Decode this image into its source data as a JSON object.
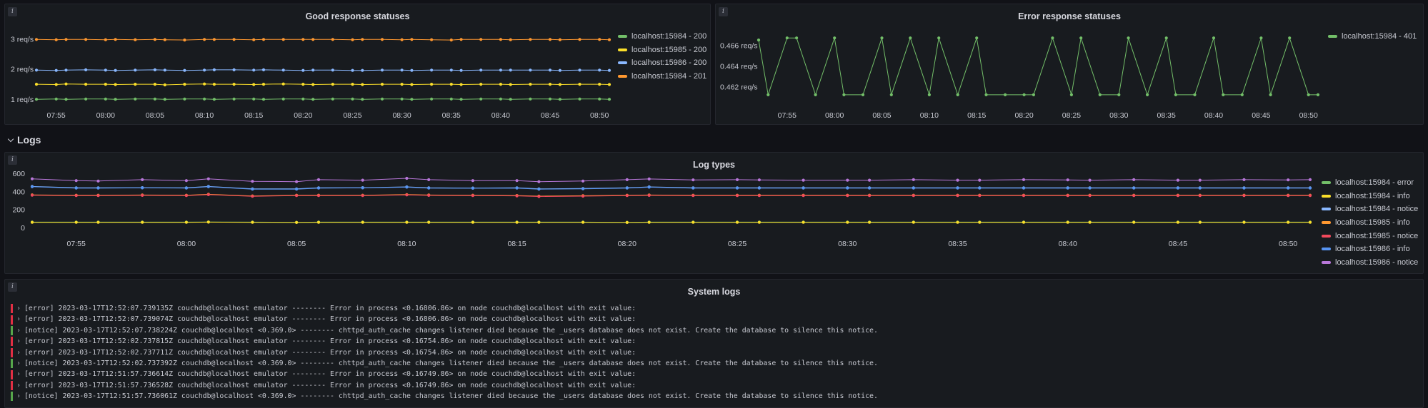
{
  "colors": {
    "green": "#73bf69",
    "yellow": "#fade2a",
    "blue": "#8ab8ff",
    "orange": "#ff9830",
    "red": "#f2495c",
    "blue2": "#5794f2",
    "purple": "#b877d9",
    "error_bar": "#e02f44",
    "notice_bar": "#56a64b"
  },
  "row_logs": {
    "label": "Logs",
    "icon": "chevron-down-icon"
  },
  "panels": {
    "good": {
      "title": "Good response statuses",
      "legend": [
        {
          "label": "localhost:15984 - 200",
          "color": "#73bf69"
        },
        {
          "label": "localhost:15985 - 200",
          "color": "#fade2a"
        },
        {
          "label": "localhost:15986 - 200",
          "color": "#8ab8ff"
        },
        {
          "label": "localhost:15984 - 201",
          "color": "#ff9830"
        }
      ]
    },
    "error": {
      "title": "Error response statuses",
      "legend": [
        {
          "label": "localhost:15984 - 401",
          "color": "#73bf69"
        }
      ]
    },
    "logtypes": {
      "title": "Log types",
      "legend": [
        {
          "label": "localhost:15984 - error",
          "color": "#73bf69"
        },
        {
          "label": "localhost:15984 - info",
          "color": "#fade2a"
        },
        {
          "label": "localhost:15984 - notice",
          "color": "#8ab8ff"
        },
        {
          "label": "localhost:15985 - info",
          "color": "#ff9830"
        },
        {
          "label": "localhost:15985 - notice",
          "color": "#f2495c"
        },
        {
          "label": "localhost:15986 - info",
          "color": "#5794f2"
        },
        {
          "label": "localhost:15986 - notice",
          "color": "#b877d9"
        }
      ]
    },
    "syslogs": {
      "title": "System logs",
      "lines": [
        {
          "level": "error",
          "text": "[error] 2023-03-17T12:52:07.739135Z couchdb@localhost emulator -------- Error in process <0.16806.86> on node couchdb@localhost with exit value:"
        },
        {
          "level": "error",
          "text": "[error] 2023-03-17T12:52:07.739074Z couchdb@localhost emulator -------- Error in process <0.16806.86> on node couchdb@localhost with exit value:"
        },
        {
          "level": "notice",
          "text": "[notice] 2023-03-17T12:52:07.738224Z couchdb@localhost <0.369.0> -------- chttpd_auth_cache changes listener died because the _users database does not exist. Create the database to silence this notice."
        },
        {
          "level": "error",
          "text": "[error] 2023-03-17T12:52:02.737815Z couchdb@localhost emulator -------- Error in process <0.16754.86> on node couchdb@localhost with exit value:"
        },
        {
          "level": "error",
          "text": "[error] 2023-03-17T12:52:02.737711Z couchdb@localhost emulator -------- Error in process <0.16754.86> on node couchdb@localhost with exit value:"
        },
        {
          "level": "notice",
          "text": "[notice] 2023-03-17T12:52:02.737392Z couchdb@localhost <0.369.0> -------- chttpd_auth_cache changes listener died because the _users database does not exist. Create the database to silence this notice."
        },
        {
          "level": "error",
          "text": "[error] 2023-03-17T12:51:57.736614Z couchdb@localhost emulator -------- Error in process <0.16749.86> on node couchdb@localhost with exit value:"
        },
        {
          "level": "error",
          "text": "[error] 2023-03-17T12:51:57.736528Z couchdb@localhost emulator -------- Error in process <0.16749.86> on node couchdb@localhost with exit value:"
        },
        {
          "level": "notice",
          "text": "[notice] 2023-03-17T12:51:57.736061Z couchdb@localhost <0.369.0> -------- chttpd_auth_cache changes listener died because the _users database does not exist. Create the database to silence this notice."
        }
      ]
    }
  },
  "chart_data": [
    {
      "type": "line",
      "title": "Good response statuses",
      "x": [
        "07:53",
        "07:55",
        "07:56",
        "07:58",
        "08:00",
        "08:01",
        "08:03",
        "08:05",
        "08:06",
        "08:08",
        "08:10",
        "08:11",
        "08:13",
        "08:15",
        "08:16",
        "08:18",
        "08:20",
        "08:21",
        "08:23",
        "08:25",
        "08:26",
        "08:28",
        "08:30",
        "08:31",
        "08:33",
        "08:35",
        "08:36",
        "08:38",
        "08:40",
        "08:41",
        "08:43",
        "08:45",
        "08:46",
        "08:48",
        "08:50",
        "08:51"
      ],
      "x_ticks": [
        "07:55",
        "08:00",
        "08:05",
        "08:10",
        "08:15",
        "08:20",
        "08:25",
        "08:30",
        "08:35",
        "08:40",
        "08:45",
        "08:50"
      ],
      "y_ticks": [
        "1 req/s",
        "2 req/s",
        "3 req/s"
      ],
      "ylim": [
        0.9,
        3.2
      ],
      "series": [
        {
          "name": "localhost:15984 - 200",
          "color": "#73bf69",
          "values": [
            0.99,
            1.0,
            0.99,
            1.0,
            1.0,
            0.99,
            1.0,
            1.0,
            0.99,
            1.0,
            1.0,
            0.99,
            1.0,
            1.0,
            0.99,
            1.0,
            1.0,
            0.99,
            1.0,
            1.0,
            0.99,
            1.0,
            1.0,
            0.99,
            1.0,
            1.0,
            0.99,
            1.0,
            1.0,
            0.99,
            1.0,
            1.0,
            0.99,
            1.0,
            1.0,
            0.99
          ]
        },
        {
          "name": "localhost:15985 - 200",
          "color": "#fade2a",
          "values": [
            1.49,
            1.48,
            1.5,
            1.49,
            1.49,
            1.48,
            1.49,
            1.49,
            1.47,
            1.49,
            1.5,
            1.49,
            1.49,
            1.48,
            1.49,
            1.5,
            1.49,
            1.48,
            1.49,
            1.49,
            1.48,
            1.49,
            1.49,
            1.48,
            1.49,
            1.49,
            1.48,
            1.49,
            1.49,
            1.48,
            1.49,
            1.49,
            1.48,
            1.49,
            1.49,
            1.48
          ]
        },
        {
          "name": "localhost:15986 - 200",
          "color": "#8ab8ff",
          "values": [
            1.96,
            1.95,
            1.96,
            1.97,
            1.96,
            1.95,
            1.96,
            1.97,
            1.96,
            1.95,
            1.96,
            1.97,
            1.97,
            1.96,
            1.97,
            1.96,
            1.95,
            1.96,
            1.96,
            1.95,
            1.95,
            1.96,
            1.96,
            1.95,
            1.96,
            1.96,
            1.95,
            1.96,
            1.96,
            1.96,
            1.96,
            1.96,
            1.95,
            1.96,
            1.96,
            1.95
          ]
        },
        {
          "name": "localhost:15984 - 201",
          "color": "#ff9830",
          "values": [
            2.98,
            2.97,
            2.98,
            2.98,
            2.97,
            2.98,
            2.97,
            2.98,
            2.97,
            2.96,
            2.98,
            2.98,
            2.98,
            2.97,
            2.98,
            2.98,
            2.98,
            2.98,
            2.98,
            2.97,
            2.98,
            2.98,
            2.97,
            2.98,
            2.97,
            2.96,
            2.98,
            2.98,
            2.98,
            2.97,
            2.98,
            2.98,
            2.97,
            2.98,
            2.98,
            2.97
          ]
        }
      ]
    },
    {
      "type": "line",
      "title": "Error response statuses",
      "x": [
        "07:52",
        "07:53",
        "07:55",
        "07:56",
        "07:58",
        "08:00",
        "08:01",
        "08:03",
        "08:05",
        "08:06",
        "08:08",
        "08:10",
        "08:11",
        "08:13",
        "08:15",
        "08:16",
        "08:18",
        "08:20",
        "08:21",
        "08:23",
        "08:25",
        "08:26",
        "08:28",
        "08:30",
        "08:31",
        "08:33",
        "08:35",
        "08:36",
        "08:38",
        "08:40",
        "08:41",
        "08:43",
        "08:45",
        "08:46",
        "08:48",
        "08:50",
        "08:51"
      ],
      "x_ticks": [
        "07:55",
        "08:00",
        "08:05",
        "08:10",
        "08:15",
        "08:20",
        "08:25",
        "08:30",
        "08:35",
        "08:40",
        "08:45",
        "08:50"
      ],
      "y_ticks": [
        "0.462 req/s",
        "0.464 req/s",
        "0.466 req/s"
      ],
      "ylim": [
        0.4605,
        0.4672
      ],
      "series": [
        {
          "name": "localhost:15984 - 401",
          "color": "#73bf69",
          "values": [
            0.4665,
            0.4612,
            0.4667,
            0.4667,
            0.4612,
            0.4667,
            0.4612,
            0.4612,
            0.4667,
            0.4612,
            0.4667,
            0.4612,
            0.4667,
            0.4612,
            0.4667,
            0.4612,
            0.4612,
            0.4612,
            0.4612,
            0.4667,
            0.4612,
            0.4667,
            0.4612,
            0.4612,
            0.4667,
            0.4612,
            0.4667,
            0.4612,
            0.4612,
            0.4667,
            0.4612,
            0.4612,
            0.4667,
            0.4612,
            0.4667,
            0.4612,
            0.4612
          ]
        }
      ]
    },
    {
      "type": "line",
      "title": "Log types",
      "x": [
        "07:53",
        "07:55",
        "07:56",
        "07:58",
        "08:00",
        "08:01",
        "08:03",
        "08:05",
        "08:06",
        "08:08",
        "08:10",
        "08:11",
        "08:13",
        "08:15",
        "08:16",
        "08:18",
        "08:20",
        "08:21",
        "08:23",
        "08:25",
        "08:26",
        "08:28",
        "08:30",
        "08:31",
        "08:33",
        "08:35",
        "08:36",
        "08:38",
        "08:40",
        "08:41",
        "08:43",
        "08:45",
        "08:46",
        "08:48",
        "08:50",
        "08:51"
      ],
      "x_ticks": [
        "07:55",
        "08:00",
        "08:05",
        "08:10",
        "08:15",
        "08:20",
        "08:25",
        "08:30",
        "08:35",
        "08:40",
        "08:45",
        "08:50"
      ],
      "y_ticks": [
        "0",
        "200",
        "400",
        "600"
      ],
      "ylim": [
        0,
        640
      ],
      "series": [
        {
          "name": "localhost:15984 - error",
          "color": "#73bf69",
          "values": [
            60,
            60,
            60,
            60,
            60,
            62,
            60,
            58,
            60,
            60,
            60,
            60,
            60,
            60,
            60,
            60,
            58,
            60,
            60,
            60,
            60,
            60,
            60,
            60,
            60,
            60,
            60,
            60,
            60,
            60,
            60,
            60,
            60,
            60,
            60,
            60
          ]
        },
        {
          "name": "localhost:15984 - info",
          "color": "#fade2a",
          "values": [
            58,
            58,
            58,
            58,
            58,
            60,
            58,
            56,
            58,
            58,
            58,
            58,
            58,
            58,
            58,
            58,
            56,
            58,
            58,
            58,
            58,
            58,
            58,
            58,
            58,
            58,
            58,
            58,
            58,
            58,
            58,
            58,
            58,
            58,
            58,
            58
          ]
        },
        {
          "name": "localhost:15984 - notice",
          "color": "#8ab8ff",
          "values": [
            455,
            440,
            440,
            442,
            440,
            455,
            428,
            428,
            440,
            442,
            450,
            440,
            438,
            440,
            428,
            432,
            440,
            450,
            440,
            440,
            440,
            440,
            440,
            440,
            440,
            440,
            440,
            440,
            440,
            440,
            440,
            440,
            440,
            440,
            440,
            440
          ]
        },
        {
          "name": "localhost:15985 - info",
          "color": "#ff9830",
          "values": [
            362,
            358,
            358,
            360,
            358,
            368,
            350,
            358,
            358,
            358,
            365,
            360,
            358,
            355,
            348,
            352,
            358,
            360,
            358,
            358,
            358,
            358,
            358,
            358,
            358,
            358,
            358,
            358,
            358,
            358,
            358,
            358,
            358,
            358,
            358,
            358
          ]
        },
        {
          "name": "localhost:15985 - notice",
          "color": "#f2495c",
          "values": [
            358,
            354,
            354,
            356,
            354,
            364,
            346,
            354,
            354,
            354,
            361,
            356,
            354,
            351,
            344,
            348,
            354,
            356,
            354,
            354,
            354,
            354,
            354,
            354,
            354,
            354,
            354,
            354,
            354,
            354,
            354,
            354,
            354,
            354,
            354,
            354
          ]
        },
        {
          "name": "localhost:15986 - info",
          "color": "#5794f2",
          "values": [
            452,
            437,
            437,
            439,
            437,
            452,
            425,
            425,
            437,
            439,
            447,
            437,
            435,
            437,
            425,
            429,
            437,
            447,
            437,
            437,
            437,
            437,
            437,
            437,
            437,
            437,
            437,
            437,
            437,
            437,
            437,
            437,
            437,
            437,
            437,
            437
          ]
        },
        {
          "name": "localhost:15986 - notice",
          "color": "#b877d9",
          "values": [
            540,
            520,
            515,
            530,
            520,
            540,
            512,
            508,
            530,
            525,
            545,
            530,
            520,
            520,
            508,
            515,
            530,
            538,
            528,
            530,
            528,
            525,
            525,
            525,
            530,
            525,
            525,
            530,
            528,
            525,
            530,
            525,
            525,
            530,
            528,
            530
          ]
        }
      ]
    }
  ]
}
